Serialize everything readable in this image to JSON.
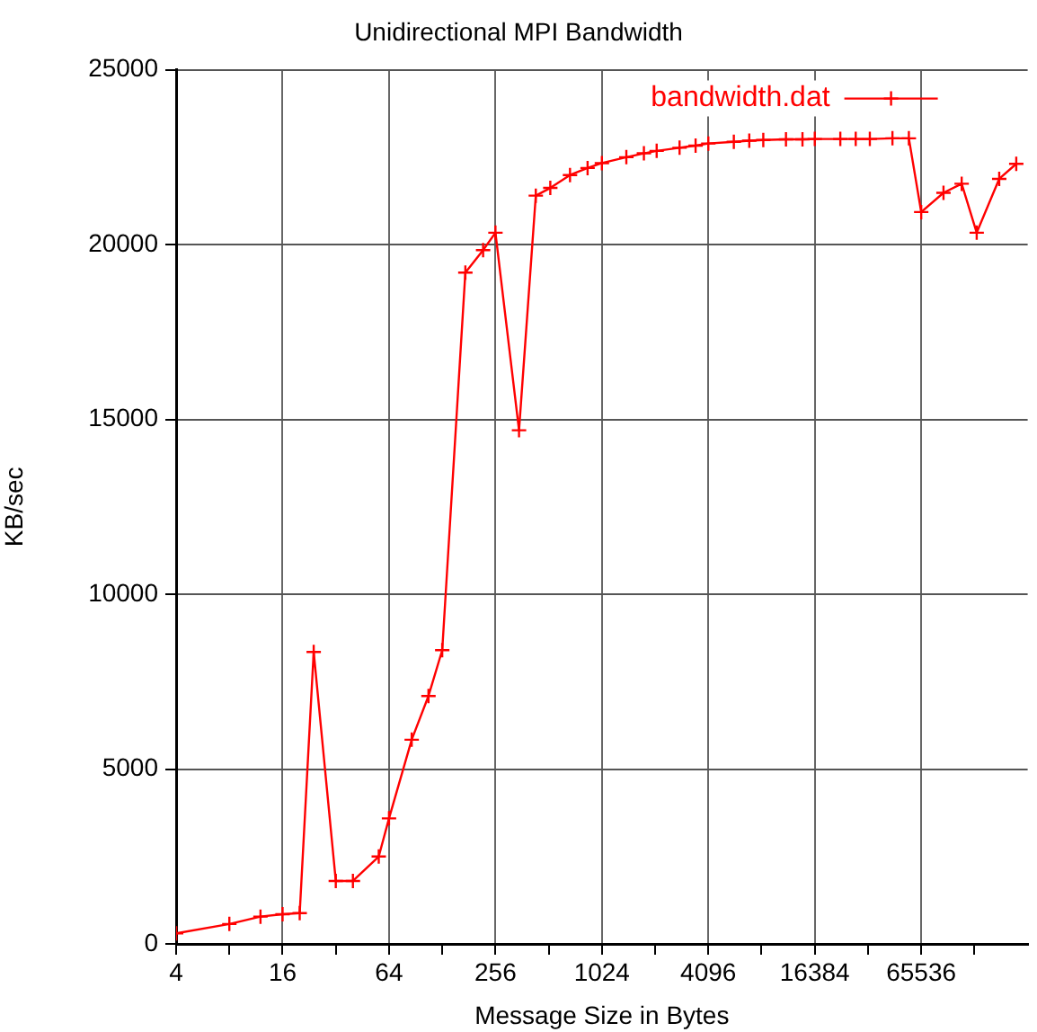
{
  "chart_data": {
    "type": "line",
    "title": "Unidirectional MPI Bandwidth",
    "xlabel": "Message Size in Bytes",
    "ylabel": "KB/sec",
    "log": "x",
    "xlim": [
      4,
      262144
    ],
    "xticks": [
      4,
      {
        "value": 8,
        "label": null
      },
      16,
      {
        "value": 32,
        "label": null
      },
      64,
      {
        "value": 128,
        "label": null
      },
      256,
      {
        "value": 512,
        "label": null
      },
      1024,
      {
        "value": 2048,
        "label": null
      },
      4096,
      {
        "value": 8192,
        "label": null
      },
      16384,
      {
        "value": 32768,
        "label": null
      },
      65536,
      {
        "value": 131072,
        "label": null
      }
    ],
    "ylim": [
      0,
      25000
    ],
    "yticks": [
      0,
      5000,
      10000,
      15000,
      20000,
      25000
    ],
    "grid": true,
    "legend": "top right",
    "marker": "cross",
    "line_style": "solid",
    "series": [
      {
        "name": "bandwidth.dat",
        "color": "#ff0000",
        "x": [
          4,
          8,
          12,
          16,
          20,
          24,
          32,
          40,
          56,
          64,
          86,
          107,
          128,
          173,
          218,
          256,
          348,
          433,
          523,
          676,
          850,
          1024,
          1408,
          1770,
          2090,
          2816,
          3470,
          4096,
          5710,
          6980,
          8380,
          11260,
          13960,
          16384,
          22850,
          27930,
          33560,
          45060,
          55800,
          65536,
          87600,
          111000,
          135000,
          181000,
          226000
        ],
        "values": [
          300,
          570,
          780,
          850,
          880,
          8350,
          1800,
          1800,
          2500,
          3590,
          5840,
          7090,
          8400,
          19200,
          19840,
          20340,
          14690,
          21400,
          21620,
          21990,
          22190,
          22330,
          22500,
          22610,
          22680,
          22770,
          22830,
          22890,
          22940,
          22970,
          22990,
          23010,
          23010,
          23020,
          23020,
          23020,
          23020,
          23040,
          23040,
          20930,
          21480,
          21740,
          20340,
          21880,
          22310
        ]
      }
    ]
  }
}
